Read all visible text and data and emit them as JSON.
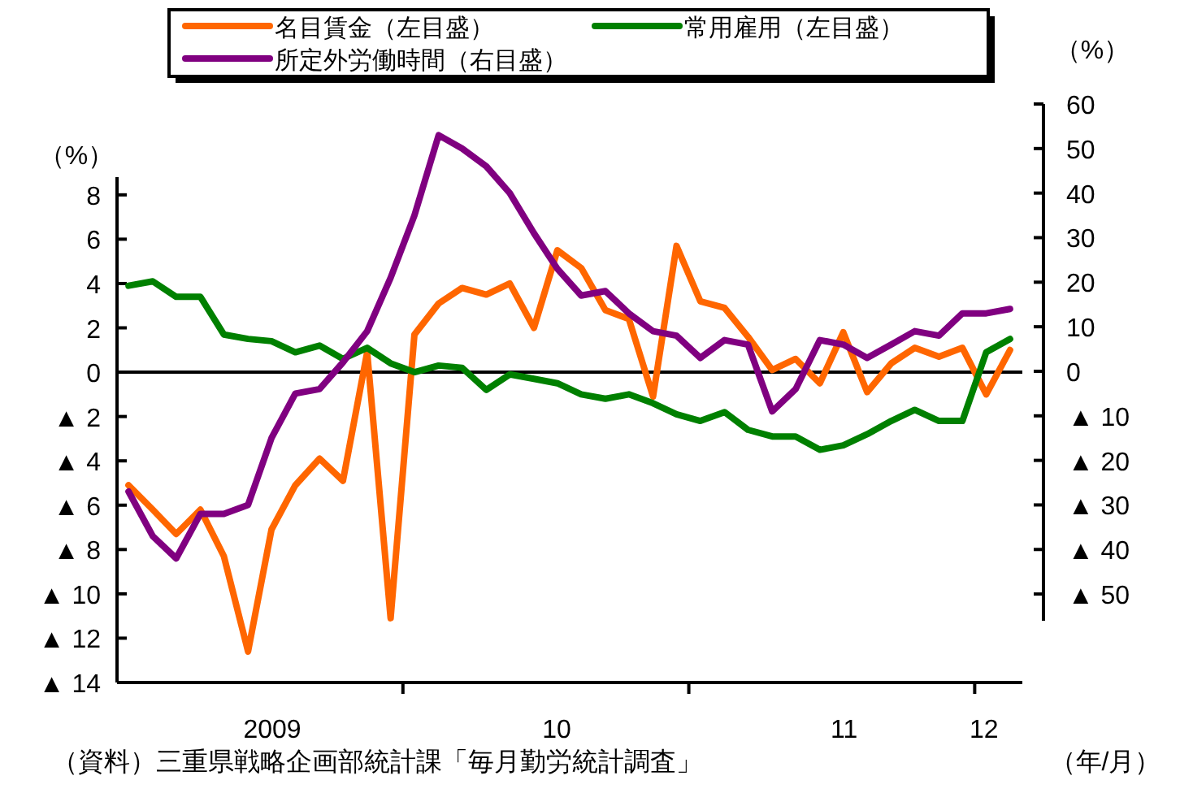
{
  "chart_data": {
    "type": "line",
    "xlabel": "（年/月）",
    "ylabel": "（%）",
    "y2label": "（%）",
    "annotations": [
      "（資料）三重県戦略企画部統計課「毎月勤労統計調査」"
    ],
    "x": [
      "2009-01-16",
      "2009-02-15",
      "2009-03-16",
      "2009-04-16",
      "2009-05-16",
      "2009-06-16",
      "2009-07-16",
      "2009-08-16",
      "2009-09-16",
      "2009-10-16",
      "2009-11-16",
      "2009-12-16",
      "2010-01-16",
      "2010-02-15",
      "2010-03-16",
      "2010-04-16",
      "2010-05-16",
      "2010-06-16",
      "2010-07-16",
      "2010-08-16",
      "2010-09-16",
      "2010-10-16",
      "2010-11-16",
      "2010-12-16",
      "2011-01-16",
      "2011-02-15",
      "2011-03-16",
      "2011-04-16",
      "2011-05-16",
      "2011-06-16",
      "2011-07-16",
      "2011-08-16",
      "2011-09-16",
      "2011-10-16",
      "2011-11-16",
      "2011-12-16",
      "2012-01-16",
      "2012-02-15"
    ],
    "series": [
      {
        "name": "名目賃金（左目盛）",
        "color": "#ff6600",
        "values": [
          -5.1,
          -6.2,
          -7.3,
          -6.2,
          -8.3,
          -12.6,
          -7.1,
          -5.1,
          -3.9,
          -4.9,
          0.9,
          -11.1,
          1.7,
          3.1,
          3.8,
          3.5,
          4.0,
          2.0,
          5.5,
          4.7,
          2.8,
          2.4,
          -1.1,
          5.7,
          3.2,
          2.9,
          1.6,
          0.1,
          0.6,
          -0.5,
          1.8,
          -0.9,
          0.4,
          1.1,
          0.7,
          1.1,
          -1.0,
          1.0
        ]
      },
      {
        "name": "常用雇用（左目盛）",
        "color": "#008000",
        "values": [
          3.9,
          4.1,
          3.4,
          3.4,
          1.7,
          1.5,
          1.4,
          0.9,
          1.2,
          0.6,
          1.1,
          0.4,
          0.0,
          0.3,
          0.2,
          -0.8,
          -0.1,
          -0.3,
          -0.5,
          -1.0,
          -1.2,
          -1.0,
          -1.4,
          -1.9,
          -2.2,
          -1.8,
          -2.6,
          -2.9,
          -2.9,
          -3.5,
          -3.3,
          -2.8,
          -2.2,
          -1.7,
          -2.2,
          -2.2,
          0.9,
          1.5
        ]
      },
      {
        "name": "所定外労働時間（右目盛）",
        "color": "#800080",
        "axis": "y2",
        "values": [
          -27,
          -37,
          -42,
          -32,
          -32,
          -30,
          -15,
          -5,
          -4,
          2,
          9,
          21,
          35,
          53,
          50,
          46,
          40,
          31,
          23,
          17,
          18,
          13,
          9,
          8,
          3,
          7,
          6,
          -9,
          -4,
          7,
          6,
          3,
          6,
          9,
          8,
          13,
          13,
          14
        ]
      }
    ],
    "xlim": [
      "2009-01-01",
      "2012-03-01"
    ],
    "xticks": [
      {
        "value": "2009-07-17",
        "label": "2009"
      },
      {
        "value": "2010-01-01",
        "label": null
      },
      {
        "value": "2010-07-15",
        "label": "10"
      },
      {
        "value": "2011-01-01",
        "label": null
      },
      {
        "value": "2011-07-17",
        "label": "11"
      },
      {
        "value": "2012-01-01",
        "label": null
      },
      {
        "value": "2012-01-13",
        "label": "12"
      }
    ],
    "ylim": [
      -14,
      8.8
    ],
    "yticks": [
      8,
      6,
      4,
      2,
      0,
      {
        "value": -2,
        "label": "▲ 2"
      },
      {
        "value": -4,
        "label": "▲ 4"
      },
      {
        "value": -6,
        "label": "▲ 6"
      },
      {
        "value": -8,
        "label": "▲ 8"
      },
      {
        "value": -10,
        "label": "▲ 10"
      },
      {
        "value": -12,
        "label": "▲ 12"
      },
      {
        "value": -14,
        "label": "▲ 14"
      }
    ],
    "y2lim": [
      -56,
      60
    ],
    "y2ticks": [
      60,
      50,
      40,
      30,
      20,
      10,
      0,
      {
        "value": -10,
        "label": "▲ 10"
      },
      {
        "value": -20,
        "label": "▲ 20"
      },
      {
        "value": -30,
        "label": "▲ 30"
      },
      {
        "value": -40,
        "label": "▲ 40"
      },
      {
        "value": -50,
        "label": "▲ 50"
      }
    ],
    "ref_lines": [
      {
        "axis": "y",
        "value": 0,
        "color": "#000000"
      }
    ],
    "grid": false,
    "legend": "top",
    "line_style": "solid",
    "marker": "none"
  }
}
